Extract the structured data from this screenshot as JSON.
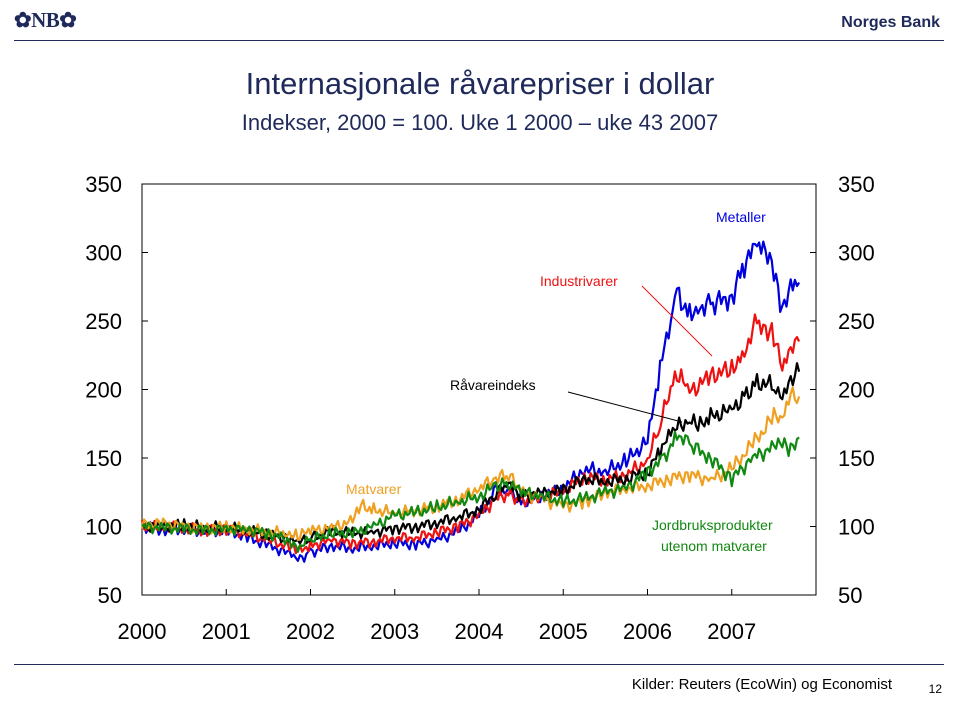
{
  "header": {
    "logo_text": "✿NB✿",
    "bank_name": "Norges Bank"
  },
  "footer": {
    "source": "Kilder: Reuters (EcoWin) og Economist",
    "page_number": "12"
  },
  "colors": {
    "brand": "#1f2a5a",
    "metaller": "#0000dd",
    "industrivarer": "#ee1111",
    "ravareindeks": "#000000",
    "matvarer": "#f0a020",
    "jordbruk": "#118811"
  },
  "chart_data": {
    "type": "line",
    "title": "Internasjonale råvarepriser i dollar",
    "subtitle": "Indekser, 2000 = 100. Uke 1 2000 – uke 43 2007",
    "x_tick_labels": [
      "2000",
      "2001",
      "2002",
      "2003",
      "2004",
      "2005",
      "2006",
      "2007"
    ],
    "y_ticks": [
      50,
      100,
      150,
      200,
      250,
      300,
      350
    ],
    "ylim": [
      50,
      350
    ],
    "xlim": [
      2000.0,
      2008.0
    ],
    "axes": "left and right y axes identical",
    "grid": false,
    "annotations": {
      "metaller": "Metaller",
      "industrivarer": "Industrivarer",
      "ravareindeks": "Råvareindeks",
      "matvarer": "Matvarer",
      "jordbruk_line1": "Jordbruksprodukter",
      "jordbruk_line2": "utenom matvarer"
    },
    "series": [
      {
        "name": "Metaller",
        "color": "#0000dd",
        "x": [
          2000.0,
          2000.25,
          2000.5,
          2000.75,
          2001.0,
          2001.25,
          2001.5,
          2001.75,
          2001.85,
          2002.0,
          2002.25,
          2002.5,
          2002.75,
          2003.0,
          2003.25,
          2003.5,
          2003.75,
          2004.0,
          2004.2,
          2004.35,
          2004.5,
          2004.75,
          2005.0,
          2005.25,
          2005.5,
          2005.75,
          2006.0,
          2006.15,
          2006.3,
          2006.35,
          2006.5,
          2006.6,
          2006.75,
          2007.0,
          2007.15,
          2007.3,
          2007.4,
          2007.5,
          2007.6,
          2007.7,
          2007.8
        ],
        "y": [
          100,
          98,
          99,
          96,
          97,
          92,
          86,
          80,
          76,
          81,
          86,
          84,
          86,
          88,
          87,
          90,
          96,
          108,
          125,
          128,
          117,
          122,
          128,
          142,
          140,
          148,
          162,
          215,
          260,
          270,
          255,
          260,
          262,
          268,
          292,
          305,
          300,
          285,
          255,
          275,
          278
        ]
      },
      {
        "name": "Industrivarer",
        "color": "#ee1111",
        "x": [
          2000.0,
          2000.25,
          2000.5,
          2000.75,
          2001.0,
          2001.25,
          2001.5,
          2001.75,
          2001.85,
          2002.0,
          2002.25,
          2002.5,
          2002.75,
          2003.0,
          2003.25,
          2003.5,
          2003.75,
          2004.0,
          2004.2,
          2004.35,
          2004.5,
          2004.75,
          2005.0,
          2005.25,
          2005.5,
          2005.75,
          2006.0,
          2006.15,
          2006.3,
          2006.4,
          2006.5,
          2006.75,
          2007.0,
          2007.15,
          2007.3,
          2007.4,
          2007.5,
          2007.6,
          2007.7,
          2007.8
        ],
        "y": [
          100,
          99,
          99,
          97,
          98,
          95,
          90,
          85,
          82,
          86,
          90,
          88,
          89,
          92,
          92,
          96,
          100,
          108,
          120,
          124,
          118,
          121,
          126,
          136,
          134,
          138,
          148,
          175,
          205,
          208,
          198,
          210,
          215,
          228,
          250,
          245,
          240,
          215,
          228,
          235
        ]
      },
      {
        "name": "Råvareindeks",
        "color": "#000000",
        "x": [
          2000.0,
          2000.25,
          2000.5,
          2000.75,
          2001.0,
          2001.25,
          2001.5,
          2001.75,
          2001.85,
          2002.0,
          2002.25,
          2002.5,
          2002.75,
          2003.0,
          2003.25,
          2003.5,
          2003.75,
          2004.0,
          2004.2,
          2004.35,
          2004.5,
          2004.75,
          2005.0,
          2005.25,
          2005.5,
          2005.75,
          2006.0,
          2006.15,
          2006.3,
          2006.5,
          2006.6,
          2006.75,
          2007.0,
          2007.15,
          2007.3,
          2007.5,
          2007.6,
          2007.7,
          2007.8
        ],
        "y": [
          100,
          100,
          101,
          99,
          99,
          97,
          94,
          91,
          88,
          92,
          96,
          95,
          96,
          99,
          100,
          103,
          107,
          112,
          125,
          130,
          123,
          124,
          126,
          135,
          133,
          135,
          140,
          155,
          170,
          178,
          172,
          180,
          185,
          195,
          205,
          203,
          196,
          208,
          213
        ]
      },
      {
        "name": "Matvarer",
        "color": "#f0a020",
        "x": [
          2000.0,
          2000.25,
          2000.5,
          2000.75,
          2001.0,
          2001.25,
          2001.5,
          2001.75,
          2001.85,
          2002.0,
          2002.25,
          2002.5,
          2002.6,
          2002.75,
          2003.0,
          2003.25,
          2003.5,
          2003.75,
          2004.0,
          2004.2,
          2004.35,
          2004.5,
          2004.75,
          2005.0,
          2005.25,
          2005.5,
          2005.75,
          2006.0,
          2006.25,
          2006.5,
          2006.75,
          2007.0,
          2007.25,
          2007.5,
          2007.6,
          2007.7,
          2007.8
        ],
        "y": [
          101,
          102,
          100,
          99,
          100,
          98,
          96,
          95,
          93,
          97,
          99,
          104,
          115,
          112,
          110,
          112,
          115,
          120,
          128,
          135,
          138,
          125,
          120,
          115,
          118,
          125,
          128,
          130,
          135,
          138,
          134,
          142,
          160,
          180,
          178,
          198,
          195
        ]
      },
      {
        "name": "Jordbruksprodukter utenom matvarer",
        "color": "#118811",
        "x": [
          2000.0,
          2000.25,
          2000.5,
          2000.75,
          2001.0,
          2001.25,
          2001.5,
          2001.75,
          2001.85,
          2002.0,
          2002.25,
          2002.5,
          2002.75,
          2003.0,
          2003.25,
          2003.5,
          2003.75,
          2004.0,
          2004.2,
          2004.35,
          2004.5,
          2004.75,
          2005.0,
          2005.25,
          2005.5,
          2005.75,
          2006.0,
          2006.2,
          2006.35,
          2006.5,
          2006.75,
          2007.0,
          2007.25,
          2007.5,
          2007.6,
          2007.7,
          2007.8
        ],
        "y": [
          100,
          99,
          98,
          97,
          98,
          98,
          95,
          90,
          85,
          90,
          95,
          95,
          100,
          108,
          110,
          114,
          118,
          122,
          130,
          132,
          125,
          122,
          118,
          120,
          125,
          128,
          140,
          150,
          168,
          160,
          150,
          135,
          150,
          158,
          160,
          155,
          165
        ]
      }
    ]
  }
}
